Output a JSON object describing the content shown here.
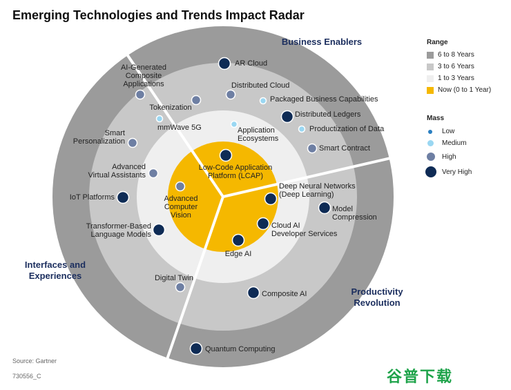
{
  "title": "Emerging Technologies and Trends Impact Radar",
  "legend": {
    "range_title": "Range",
    "range_items": [
      {
        "label": "6 to 8 Years",
        "color": "#9b9b9b"
      },
      {
        "label": "3 to 6 Years",
        "color": "#c8c8c8"
      },
      {
        "label": "1 to 3 Years",
        "color": "#efefef"
      },
      {
        "label": "Now (0 to 1 Year)",
        "color": "#f5b800"
      }
    ],
    "mass_title": "Mass",
    "mass_items": [
      {
        "label": "Low",
        "color": "#2a7fc1"
      },
      {
        "label": "Medium",
        "color": "#9ad7f2"
      },
      {
        "label": "High",
        "color": "#6e7fa3"
      },
      {
        "label": "Very High",
        "color": "#0e2b55"
      }
    ]
  },
  "themes": {
    "business": "Business Enablers",
    "interfaces": "Interfaces and Experiences",
    "productivity": "Productivity Revolution"
  },
  "technologies": [
    {
      "name": "AR Cloud",
      "mass": "Very High"
    },
    {
      "name": "AI-Generated Composite Applications",
      "mass": "High"
    },
    {
      "name": "Distributed Cloud",
      "mass": "High"
    },
    {
      "name": "Tokenization",
      "mass": "High"
    },
    {
      "name": "Packaged Business Capabilities",
      "mass": "Medium"
    },
    {
      "name": "Distributed Ledgers",
      "mass": "Very High"
    },
    {
      "name": "mmWave 5G",
      "mass": "Medium"
    },
    {
      "name": "Application Ecosystems",
      "mass": "Medium"
    },
    {
      "name": "Productization of Data",
      "mass": "Medium"
    },
    {
      "name": "Smart Personalization",
      "mass": "High"
    },
    {
      "name": "Smart Contract",
      "mass": "High"
    },
    {
      "name": "Advanced Virtual Assistants",
      "mass": "High"
    },
    {
      "name": "Low-Code Application Platform (LCAP)",
      "mass": "Very High"
    },
    {
      "name": "Deep Neural Networks (Deep Learning)",
      "mass": "Very High"
    },
    {
      "name": "IoT Platforms",
      "mass": "Very High"
    },
    {
      "name": "Advanced Computer Vision",
      "mass": "High"
    },
    {
      "name": "Model Compression",
      "mass": "Very High"
    },
    {
      "name": "Transformer-Based Language Models",
      "mass": "Very High"
    },
    {
      "name": "Cloud AI Developer Services",
      "mass": "Very High"
    },
    {
      "name": "Edge AI",
      "mass": "Very High"
    },
    {
      "name": "Digital Twin",
      "mass": "High"
    },
    {
      "name": "Composite AI",
      "mass": "Very High"
    },
    {
      "name": "Quantum Computing",
      "mass": "Very High"
    }
  ],
  "source": "Source: Gartner",
  "doc_id": "730556_C",
  "watermark": "谷普下载"
}
